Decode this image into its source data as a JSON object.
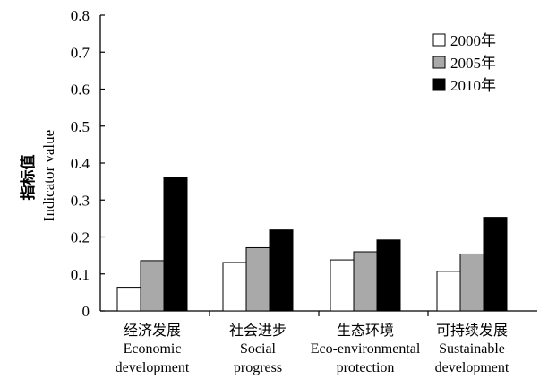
{
  "chart_data": {
    "type": "bar",
    "categories": [
      {
        "cn": "经济发展",
        "en": [
          "Economic",
          "development"
        ]
      },
      {
        "cn": "社会进步",
        "en": [
          "Social",
          "progress"
        ]
      },
      {
        "cn": "生态环境",
        "en": [
          "Eco-environmental",
          "protection"
        ]
      },
      {
        "cn": "可持续发展",
        "en": [
          "Sustainable",
          "development"
        ]
      }
    ],
    "series": [
      {
        "name": "2000年",
        "color": "#ffffff",
        "values": [
          0.064,
          0.131,
          0.138,
          0.107
        ]
      },
      {
        "name": "2005年",
        "color": "#a9a9a9",
        "values": [
          0.136,
          0.171,
          0.16,
          0.154
        ]
      },
      {
        "name": "2010年",
        "color": "#000000",
        "values": [
          0.362,
          0.219,
          0.192,
          0.253
        ]
      }
    ],
    "ylabel_cn": "指标值",
    "ylabel_en": "Indicator value",
    "ylim": [
      0,
      0.8
    ],
    "yticks": [
      "0",
      "0.1",
      "0.2",
      "0.3",
      "0.4",
      "0.5",
      "0.6",
      "0.7",
      "0.8"
    ],
    "legend_position": "top-right",
    "grid": false
  }
}
